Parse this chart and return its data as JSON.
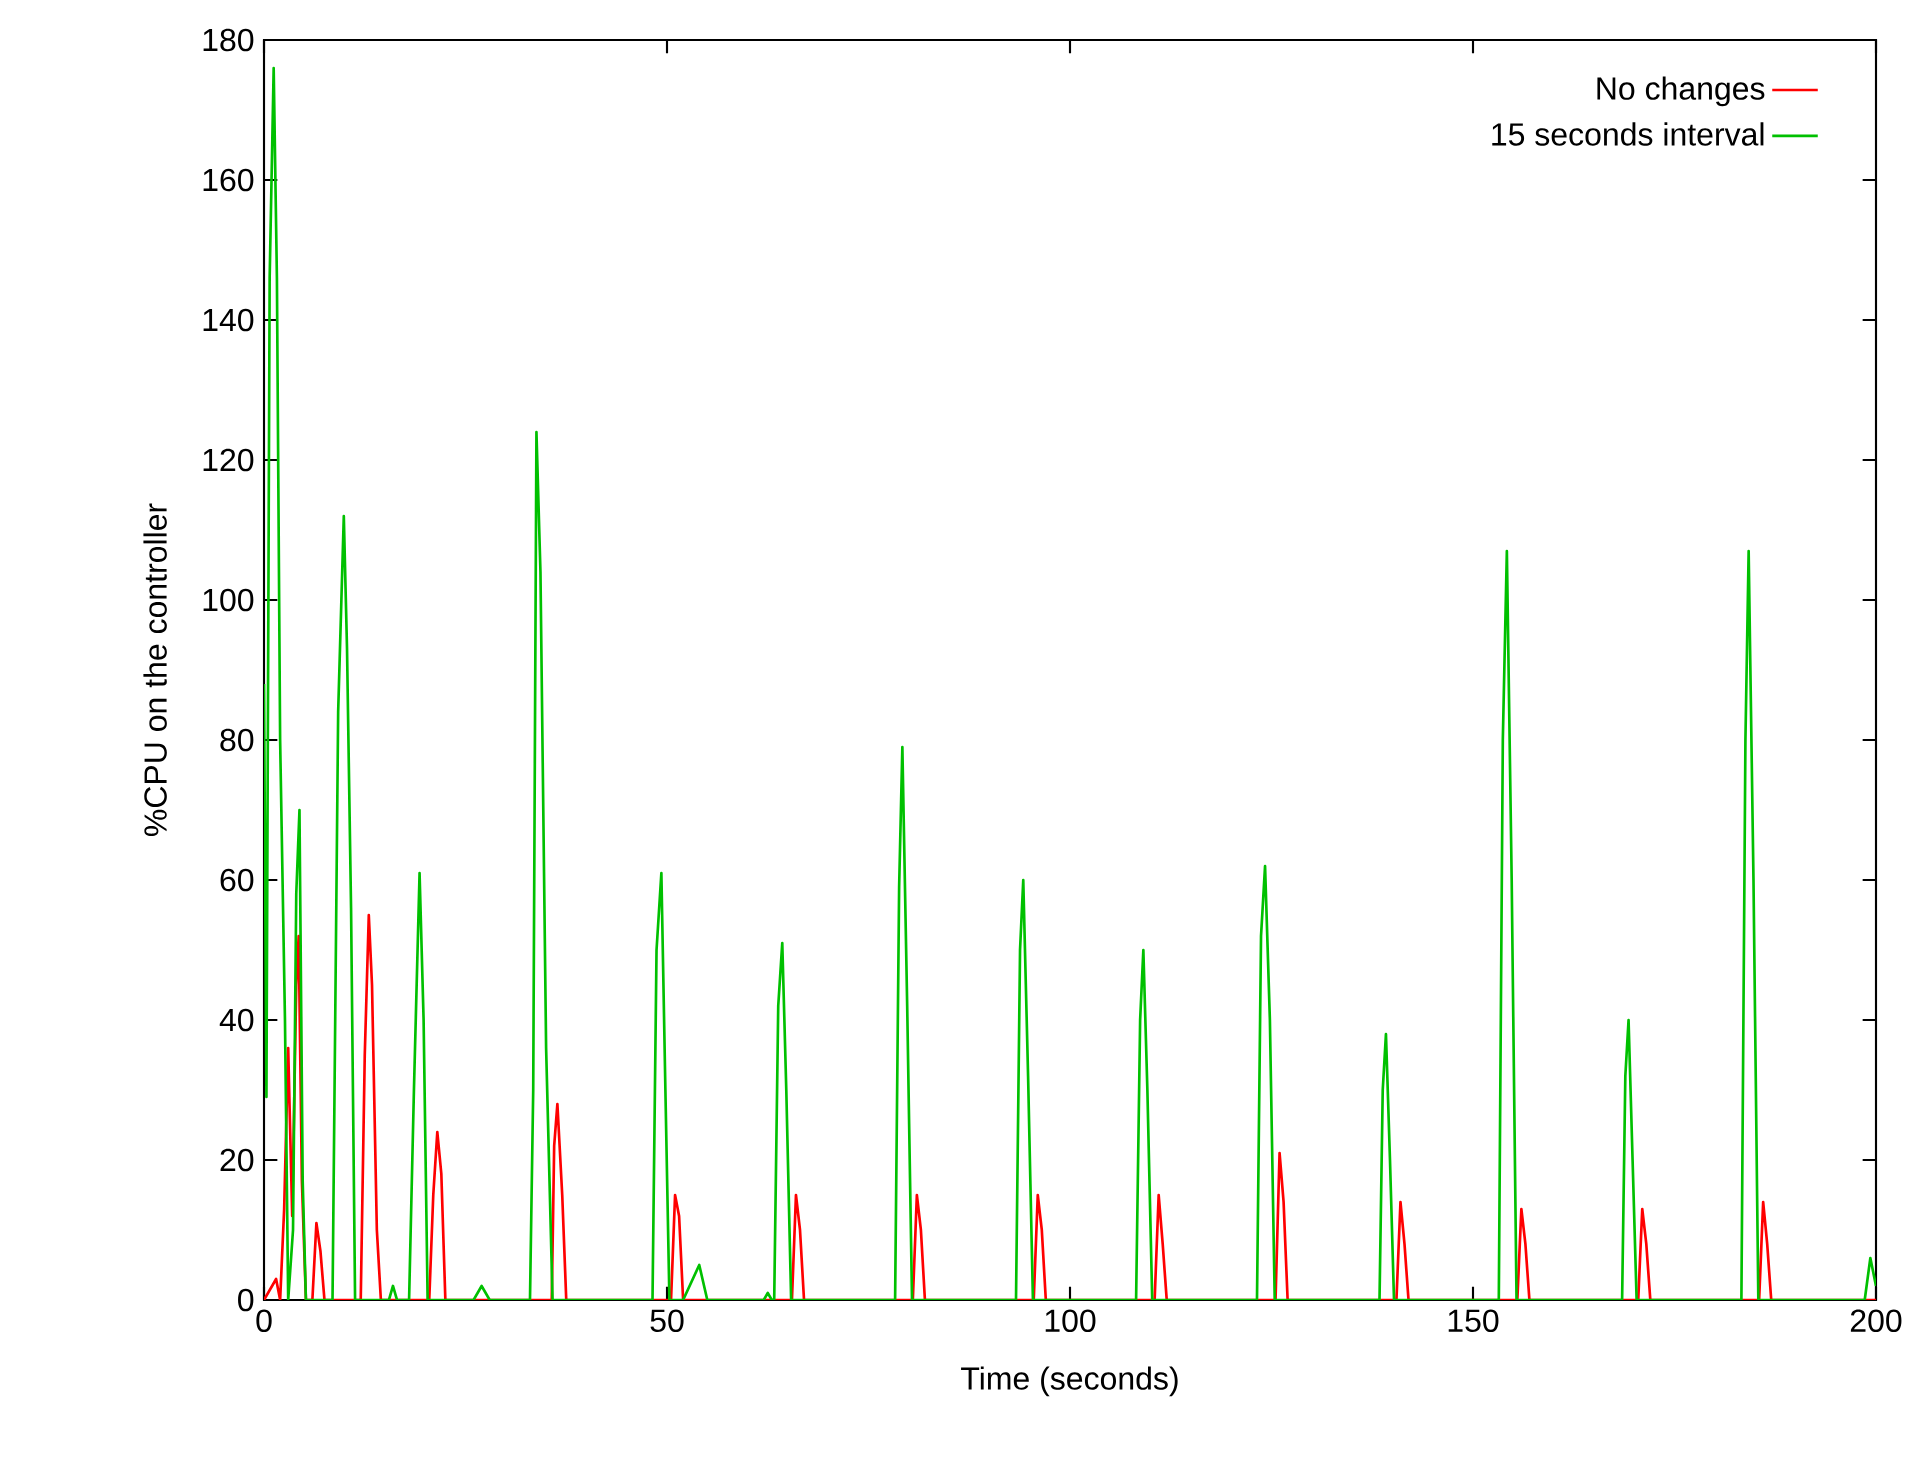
{
  "chart_data": {
    "type": "line",
    "xlabel": "Time (seconds)",
    "ylabel": "%CPU on the controller",
    "xlim": [
      0,
      200
    ],
    "ylim": [
      0,
      180
    ],
    "xticks": [
      0,
      50,
      100,
      150,
      200
    ],
    "yticks": [
      0,
      20,
      40,
      60,
      80,
      100,
      120,
      140,
      160,
      180
    ],
    "legend": "top right",
    "series": [
      {
        "name": "No changes",
        "color": "#ff0000",
        "x": [
          0,
          1.5,
          2.0,
          2.5,
          3.0,
          3.5,
          4.0,
          4.3,
          4.7,
          5.2,
          6.0,
          6.5,
          7.0,
          7.5,
          12.0,
          12.5,
          13.0,
          13.4,
          14.0,
          14.5,
          20.5,
          21.0,
          21.5,
          22.0,
          22.5,
          35.7,
          36.0,
          36.4,
          37.0,
          37.5,
          50.5,
          51.0,
          51.5,
          52.0,
          65.5,
          66.0,
          66.5,
          67.0,
          80.5,
          81.0,
          81.5,
          82,
          95.5,
          96,
          96.5,
          97,
          110.5,
          111,
          111.5,
          112,
          125.5,
          126,
          126.5,
          127,
          140.5,
          141,
          141.5,
          142,
          155.5,
          156,
          156.5,
          157,
          170.5,
          171,
          171.5,
          172,
          185.5,
          186,
          186.5,
          187,
          200
        ],
        "values": [
          0,
          3,
          0,
          13,
          36,
          12,
          45,
          52,
          17,
          0,
          0,
          11,
          7,
          0,
          0,
          35,
          55,
          45,
          10,
          0,
          0,
          15,
          24,
          18,
          0,
          0,
          22,
          28,
          15,
          0,
          0,
          15,
          12,
          0,
          0,
          15,
          10,
          0,
          0,
          15,
          10,
          0,
          0,
          15,
          10,
          0,
          0,
          15,
          8,
          0,
          0,
          21,
          14,
          0,
          0,
          14,
          8,
          0,
          0,
          13,
          8,
          0,
          0,
          13,
          8,
          0,
          0,
          14,
          8,
          0,
          0
        ]
      },
      {
        "name": "15 seconds interval",
        "color": "#00c000",
        "x": [
          0,
          0.3,
          0.7,
          1.2,
          1.6,
          2.0,
          2.6,
          3.0,
          3.6,
          4.0,
          4.4,
          4.8,
          5.2,
          8.5,
          9.2,
          9.9,
          10.3,
          10.8,
          11.3,
          15.5,
          16.0,
          16.5,
          18.0,
          18.6,
          19.3,
          19.8,
          20.3,
          26,
          27,
          28,
          33.0,
          33.4,
          33.8,
          34.3,
          35.0,
          35.8,
          48.2,
          48.7,
          49.3,
          49.8,
          50.3,
          52,
          54,
          55,
          62,
          62.5,
          63,
          63.3,
          63.8,
          64.3,
          64.8,
          65.4,
          78.3,
          78.8,
          79.2,
          79.8,
          80.4,
          93.3,
          93.8,
          94.2,
          94.8,
          95.4,
          108.2,
          108.7,
          109.1,
          109.6,
          110.2,
          123.2,
          123.7,
          124.2,
          124.8,
          125.4,
          138.4,
          138.8,
          139.2,
          139.7,
          140.2,
          153.2,
          153.7,
          154.2,
          154.8,
          155.4,
          168.5,
          168.9,
          169.3,
          169.8,
          170.3,
          183.3,
          183.8,
          184.2,
          184.8,
          185.4,
          198.6,
          199.3,
          200
        ],
        "values": [
          88,
          29,
          146,
          176,
          146,
          80,
          40,
          0,
          10,
          58,
          70,
          17,
          0,
          0,
          84,
          112,
          93,
          56,
          0,
          0,
          2,
          0,
          0,
          30,
          61,
          40,
          0,
          0,
          2,
          0,
          0,
          30,
          124,
          104,
          36,
          0,
          0,
          50,
          61,
          30,
          0,
          0,
          5,
          0,
          0,
          1,
          0,
          0,
          42,
          51,
          30,
          0,
          0,
          59,
          79,
          42,
          0,
          0,
          50,
          60,
          32,
          0,
          0,
          40,
          50,
          30,
          0,
          0,
          52,
          62,
          40,
          0,
          0,
          30,
          38,
          20,
          0,
          0,
          80,
          107,
          60,
          0,
          0,
          32,
          40,
          20,
          0,
          0,
          80,
          107,
          60,
          0,
          0,
          6,
          2
        ]
      }
    ]
  }
}
